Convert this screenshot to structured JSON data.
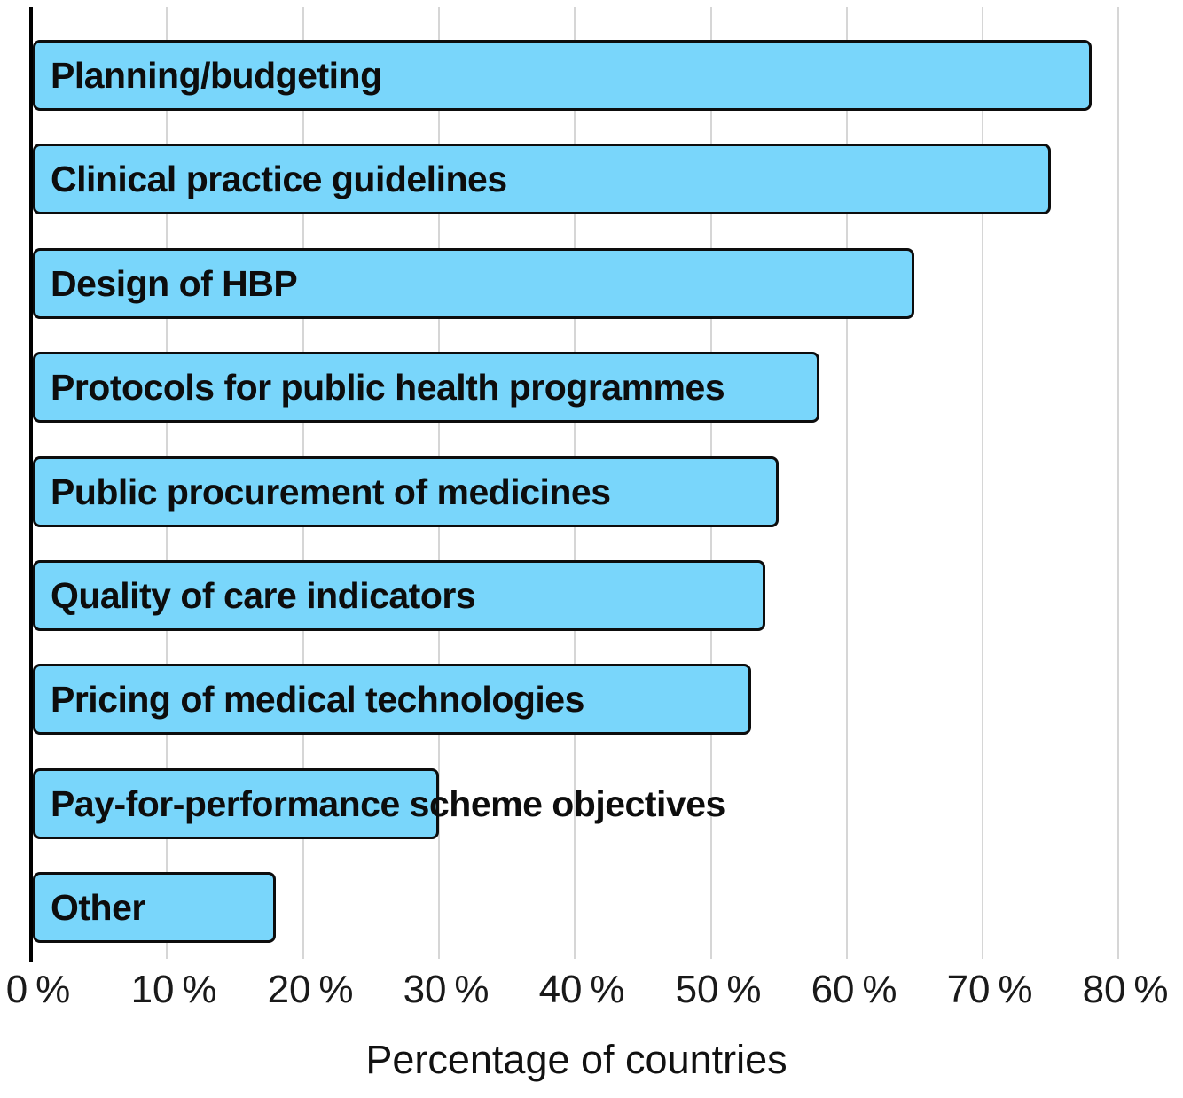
{
  "chart_data": {
    "type": "bar",
    "orientation": "horizontal",
    "title": "",
    "xlabel": "Percentage of countries",
    "ylabel": "",
    "categories": [
      "Planning/budgeting",
      "Clinical practice guidelines",
      "Design of HBP",
      "Protocols for public health programmes",
      "Public procurement of medicines",
      "Quality of care indicators",
      "Pricing of medical technologies",
      "Pay-for-performance scheme objectives",
      "Other"
    ],
    "values": [
      78,
      75,
      65,
      58,
      55,
      54,
      53,
      30,
      18
    ],
    "unit": "%",
    "xlim": [
      0,
      80
    ],
    "x_tick_values": [
      0,
      10,
      20,
      30,
      40,
      50,
      60,
      70,
      80
    ],
    "x_tick_labels": [
      "0 %",
      "10 %",
      "20 %",
      "30 %",
      "40 %",
      "50 %",
      "60 %",
      "70 %",
      "80 %"
    ],
    "grid": "vertical",
    "legend": "none",
    "bar_fill_color": "#79d6fb",
    "bar_border_color": "#0d0d0d",
    "gridline_color": "#d6d6d6",
    "axis_line_color": "#000000",
    "text_color": "#0d0d0d"
  }
}
